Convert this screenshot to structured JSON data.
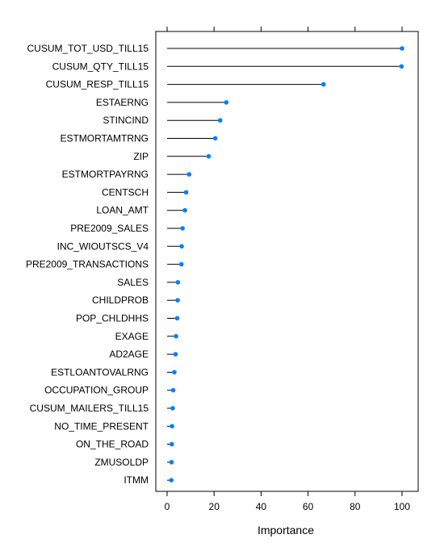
{
  "chart_data": {
    "type": "dotplot",
    "xlabel": "Importance",
    "xlim": [
      0,
      100
    ],
    "xticks": [
      0,
      20,
      40,
      60,
      80,
      100
    ],
    "grid": false,
    "marker_color": "#0080ff",
    "line_color": "#000000",
    "series": [
      {
        "categories": [
          "CUSUM_TOT_USD_TILL15",
          "CUSUM_QTY_TILL15",
          "CUSUM_RESP_TILL15",
          "ESTAERNG",
          "STINCIND",
          "ESTMORTAMTRNG",
          "ZIP",
          "ESTMORTPAYRNG",
          "CENTSCH",
          "LOAN_AMT",
          "PRE2009_SALES",
          "INC_WIOUTSCS_V4",
          "PRE2009_TRANSACTIONS",
          "SALES",
          "CHILDPROB",
          "POP_CHLDHHS",
          "EXAGE",
          "AD2AGE",
          "ESTLOANTOVALRNG",
          "OCCUPATION_GROUP",
          "CUSUM_MAILERS_TILL15",
          "NO_TIME_PRESENT",
          "ON_THE_ROAD",
          "ZMUSOLDP",
          "ITMM"
        ],
        "values": [
          100,
          99.8,
          66.6,
          25.2,
          22.6,
          20.5,
          17.7,
          9.4,
          8.1,
          7.6,
          6.6,
          6.2,
          6.1,
          4.6,
          4.5,
          4.3,
          3.8,
          3.6,
          3.1,
          2.6,
          2.4,
          2.1,
          2.0,
          1.9,
          1.8
        ]
      }
    ]
  }
}
